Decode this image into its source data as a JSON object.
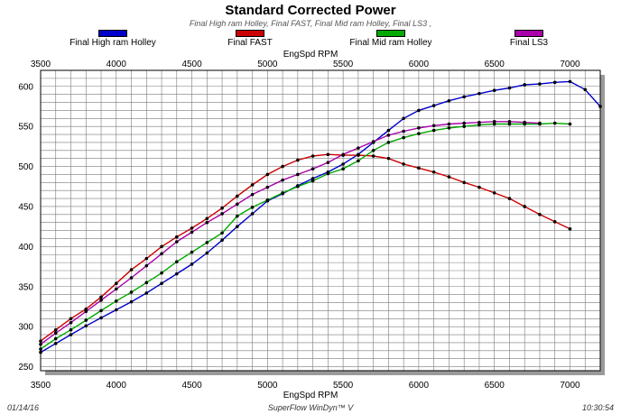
{
  "header": {
    "title": "Standard Corrected Power",
    "subtitle": "Final High ram Holley, Final FAST, Final Mid ram Holley, Final LS3 ,"
  },
  "legend": [
    {
      "label": "Final High ram Holley",
      "color": "#0000cc"
    },
    {
      "label": "Final FAST",
      "color": "#cc0000"
    },
    {
      "label": "Final Mid ram Holley",
      "color": "#00aa00"
    },
    {
      "label": "Final LS3",
      "color": "#aa00aa"
    }
  ],
  "axis": {
    "top_label": "EngSpd RPM",
    "bottom_label": "EngSpd RPM"
  },
  "footer": {
    "date": "01/14/16",
    "software": "SuperFlow WinDyn™ V",
    "time": "10:30:54"
  },
  "chart_data": {
    "type": "line",
    "title": "Standard Corrected Power",
    "xlabel": "EngSpd RPM",
    "ylabel": "",
    "xlim": [
      3500,
      7200
    ],
    "ylim": [
      245,
      620
    ],
    "x_ticks": [
      3500,
      4000,
      4500,
      5000,
      5500,
      6000,
      6500,
      7000
    ],
    "y_ticks": [
      250,
      300,
      350,
      400,
      450,
      500,
      550,
      600
    ],
    "grid": true,
    "legend_position": "top",
    "series": [
      {
        "name": "Final High ram Holley",
        "color": "#0000cc",
        "x": [
          3500,
          3600,
          3700,
          3800,
          3900,
          4000,
          4100,
          4200,
          4300,
          4400,
          4500,
          4600,
          4700,
          4800,
          4900,
          5000,
          5100,
          5200,
          5300,
          5400,
          5500,
          5600,
          5700,
          5800,
          5900,
          6000,
          6100,
          6200,
          6300,
          6400,
          6500,
          6600,
          6700,
          6800,
          6900,
          7000,
          7100,
          7200
        ],
        "y": [
          268,
          279,
          290,
          301,
          311,
          321,
          331,
          342,
          354,
          366,
          378,
          392,
          408,
          425,
          441,
          457,
          466,
          476,
          485,
          493,
          503,
          515,
          530,
          545,
          560,
          570,
          576,
          582,
          587,
          591,
          595,
          598,
          602,
          603,
          605,
          606,
          596,
          575
        ]
      },
      {
        "name": "Final FAST",
        "color": "#cc0000",
        "x": [
          3500,
          3600,
          3700,
          3800,
          3900,
          4000,
          4100,
          4200,
          4300,
          4400,
          4500,
          4600,
          4700,
          4800,
          4900,
          5000,
          5100,
          5200,
          5300,
          5400,
          5500,
          5600,
          5700,
          5800,
          5900,
          6000,
          6100,
          6200,
          6300,
          6400,
          6500,
          6600,
          6700,
          6800,
          6900,
          7000
        ],
        "y": [
          282,
          296,
          310,
          322,
          337,
          354,
          371,
          385,
          400,
          412,
          423,
          435,
          448,
          463,
          477,
          490,
          500,
          508,
          513,
          515,
          514,
          514,
          513,
          510,
          503,
          498,
          493,
          487,
          480,
          474,
          467,
          460,
          450,
          440,
          431,
          422
        ]
      },
      {
        "name": "Final Mid ram Holley",
        "color": "#00aa00",
        "x": [
          3500,
          3600,
          3700,
          3800,
          3900,
          4000,
          4100,
          4200,
          4300,
          4400,
          4500,
          4600,
          4700,
          4800,
          4900,
          5000,
          5100,
          5200,
          5300,
          5400,
          5500,
          5600,
          5700,
          5800,
          5900,
          6000,
          6100,
          6200,
          6300,
          6400,
          6500,
          6600,
          6700,
          6800,
          6900,
          7000
        ],
        "y": [
          272,
          285,
          296,
          308,
          320,
          332,
          343,
          355,
          367,
          381,
          393,
          405,
          417,
          438,
          449,
          458,
          467,
          475,
          482,
          491,
          497,
          507,
          520,
          530,
          536,
          541,
          545,
          548,
          550,
          552,
          553,
          553,
          553,
          553,
          554,
          553
        ]
      },
      {
        "name": "Final LS3",
        "color": "#aa00aa",
        "x": [
          3500,
          3600,
          3700,
          3800,
          3900,
          4000,
          4100,
          4200,
          4300,
          4400,
          4500,
          4600,
          4700,
          4800,
          4900,
          5000,
          5100,
          5200,
          5300,
          5400,
          5500,
          5600,
          5700,
          5800,
          5900,
          6000,
          6100,
          6200,
          6300,
          6400,
          6500,
          6600,
          6700,
          6800
        ],
        "y": [
          278,
          292,
          305,
          319,
          333,
          347,
          361,
          376,
          391,
          406,
          418,
          430,
          441,
          453,
          465,
          474,
          483,
          490,
          497,
          505,
          515,
          523,
          531,
          539,
          544,
          548,
          551,
          553,
          554,
          555,
          556,
          556,
          555,
          554
        ]
      }
    ]
  }
}
